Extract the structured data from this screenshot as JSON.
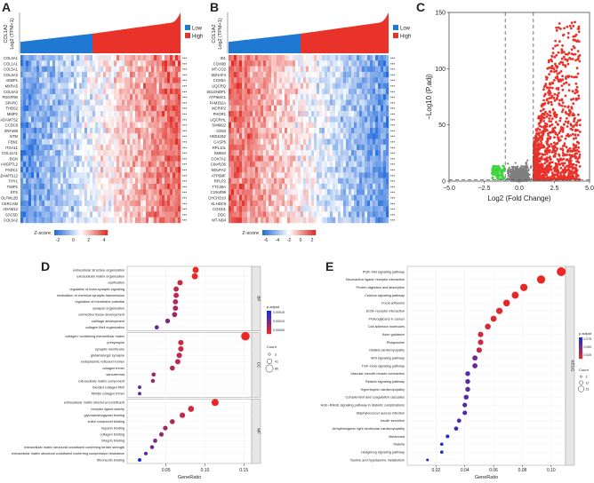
{
  "panels": {
    "a": "A",
    "b": "B",
    "c": "C",
    "d": "D",
    "e": "E"
  },
  "chart_data": [
    {
      "type": "heatmap",
      "panel": "A",
      "ylabel": "COL1A2\nLog2 (TPM+1)",
      "legend": [
        "Low",
        "High"
      ],
      "low_color": "#1f78d1",
      "high_color": "#e8322a",
      "genes": [
        "COL3A1",
        "COL1A1",
        "COL5A1",
        "COL6A2",
        "AEBP1",
        "MXRA5",
        "COL6A3",
        "PDGFRB",
        "SPARC",
        "THBS2",
        "MMP2",
        "ADAMTS2",
        "CCDC8",
        "ZNF469",
        "NTM",
        "FBN1",
        "ITGA11",
        "COL11A1",
        "BGN",
        "ANGPTL2",
        "PXDC1",
        "ADAMTS12",
        "THY1",
        "TIMP2",
        "EFS",
        "OLFML2B",
        "CERCAM",
        "ADAM12",
        "SSC5D",
        "COL6A2"
      ],
      "sig": "***",
      "colorbar": {
        "label": "Z-score",
        "ticks": [
          "-2",
          "0",
          "2",
          "4"
        ]
      }
    },
    {
      "type": "heatmap",
      "panel": "B",
      "ylabel": "COL1A2\nLog2 (TPM+1)",
      "legend": [
        "Low",
        "High"
      ],
      "low_color": "#1f78d1",
      "high_color": "#e8322a",
      "genes": [
        "ID1",
        "COX6B",
        "MT-CO2",
        "SDHAF4",
        "COX5A",
        "UQCRQ",
        "SELENBP1",
        "ATP5MC1",
        "FAM162A",
        "MCRIP2",
        "PHGR1",
        "UQCRHL",
        "SMIM22",
        "CD63",
        "HSD11B2",
        "CASP5",
        "RPL10L",
        "SMIM4",
        "COX7A2",
        "C6orf136",
        "NDUFA2",
        "ATP5MF",
        "RPLP2",
        "TTC39A",
        "C19orf99",
        "CHCHD10",
        "KLHDC9",
        "COX4I1",
        "DDC",
        "MT-ND4"
      ],
      "sig": "***",
      "colorbar": {
        "label": "Z-score",
        "ticks": [
          "-6",
          "-4",
          "-2",
          "0",
          "2"
        ]
      }
    },
    {
      "type": "scatter",
      "panel": "C",
      "title": "",
      "xlabel": "Log2 (Fold Change)",
      "ylabel": "−Log10 (P.adj)",
      "xlim": [
        -5.0,
        5.0
      ],
      "ylim": [
        0,
        150
      ],
      "xticks": [
        "−5.0",
        "−2.5",
        "0.0",
        "2.5",
        "5.0"
      ],
      "yticks": [
        "0",
        "50",
        "100",
        "150"
      ],
      "thresholds": {
        "fc": 1,
        "p": 1.3
      },
      "colors": {
        "down": "#3cd63c",
        "ns": "#7f7f7f",
        "up": "#e8322a"
      }
    },
    {
      "type": "scatter",
      "panel": "D",
      "xlabel": "GeneRatio",
      "xlim": [
        0.0,
        0.16
      ],
      "xticks": [
        "0.05",
        "0.10",
        "0.15"
      ],
      "legend_title": "p.adjust",
      "legend_ticks": [
        "0.00015",
        "0.00010",
        "0.00005"
      ],
      "size_title": "Count",
      "size_ticks": [
        "3",
        "41",
        "80"
      ],
      "groups": [
        {
          "name": "BP",
          "terms": [
            "extracellular structure organization",
            "extracellular matrix organization",
            "ossification",
            "regulation of trans-synaptic signaling",
            "modulation of chemical synaptic transmission",
            "regulation of membrane potential",
            "synapse organization",
            "connective tissue development",
            "cartilage development",
            "collagen fibril organization"
          ],
          "ratios": [
            0.088,
            0.087,
            0.068,
            0.063,
            0.063,
            0.062,
            0.062,
            0.061,
            0.052,
            0.038
          ],
          "padj": [
            1e-05,
            1e-05,
            3e-05,
            4e-05,
            4e-05,
            5e-05,
            5e-05,
            6e-05,
            8e-05,
            0.0001
          ]
        },
        {
          "name": "CC",
          "terms": [
            "collagen−containing extracellular matrix",
            "presynapse",
            "synaptic membrane",
            "glutamatergic synapse",
            "endoplasmic reticulum lumen",
            "collagen trimer",
            "sarcolemma",
            "extracellular matrix component",
            "banded collagen fibril",
            "fibrillar collagen trimer"
          ],
          "ratios": [
            0.152,
            0.069,
            0.069,
            0.067,
            0.065,
            0.058,
            0.034,
            0.033,
            0.016,
            0.016
          ],
          "padj": [
            1e-05,
            3e-05,
            3e-05,
            4e-05,
            4e-05,
            5e-05,
            6e-05,
            6e-05,
            0.0001,
            0.0001
          ]
        },
        {
          "name": "MF",
          "terms": [
            "extracellular matrix structural constituent",
            "receptor ligand activity",
            "glycosaminoglycan binding",
            "sulfur compound binding",
            "heparin binding",
            "collagen binding",
            "integrin binding",
            "extracellular matrix structural constituent conferring tensile strength",
            "extracellular matrix structural constituent conferring compression resistance",
            "fibronectin binding"
          ],
          "ratios": [
            0.113,
            0.082,
            0.071,
            0.058,
            0.049,
            0.044,
            0.036,
            0.032,
            0.024,
            0.016
          ],
          "padj": [
            1e-05,
            3e-05,
            4e-05,
            5e-05,
            6e-05,
            7e-05,
            8e-05,
            9e-05,
            0.0001,
            0.00015
          ]
        }
      ]
    },
    {
      "type": "scatter",
      "panel": "E",
      "xlabel": "GeneRatio",
      "xlim": [
        0.0,
        0.11
      ],
      "xticks": [
        "0.02",
        "0.04",
        "0.06",
        "0.08",
        "0.10"
      ],
      "group": "KEGG",
      "legend_title": "p.adjust",
      "legend_ticks": [
        "0.075",
        "0.050",
        "0.025"
      ],
      "size_title": "Count",
      "size_ticks": [
        "3",
        "12",
        "23"
      ],
      "terms": [
        "PI3K−Akt signaling pathway",
        "Neuroactive ligand−receptor interaction",
        "Protein digestion and absorption",
        "Calcium signaling pathway",
        "Focal adhesion",
        "ECM−receptor interaction",
        "Proteoglycans in cancer",
        "Cell adhesion molecules",
        "Axon guidance",
        "Phagosome",
        "Dilated cardiomyopathy",
        "Wnt signaling pathway",
        "TGF−beta signaling pathway",
        "Vascular smooth muscle contraction",
        "Relaxin signaling pathway",
        "Hypertrophic cardiomyopathy",
        "Complement and coagulation cascades",
        "AGE−RAGE signaling pathway in diabetic complications",
        "Staphylococcus aureus infection",
        "Insulin secretion",
        "Arrhythmogenic right ventricular cardiomyopathy",
        "Melanoma",
        "Malaria",
        "Hedgehog signaling pathway",
        "Taurine and hypotaurine metabolism"
      ],
      "ratios": [
        0.107,
        0.093,
        0.081,
        0.075,
        0.069,
        0.064,
        0.06,
        0.056,
        0.051,
        0.051,
        0.05,
        0.047,
        0.047,
        0.042,
        0.042,
        0.042,
        0.041,
        0.04,
        0.04,
        0.036,
        0.034,
        0.028,
        0.024,
        0.024,
        0.014
      ],
      "padj": [
        0.001,
        0.002,
        0.002,
        0.003,
        0.004,
        0.005,
        0.008,
        0.01,
        0.012,
        0.013,
        0.014,
        0.045,
        0.05,
        0.055,
        0.055,
        0.055,
        0.057,
        0.058,
        0.059,
        0.06,
        0.062,
        0.075,
        0.078,
        0.078,
        0.08
      ],
      "counts": [
        23,
        21,
        18,
        17,
        16,
        15,
        14,
        13,
        12,
        12,
        12,
        11,
        11,
        10,
        10,
        10,
        10,
        9,
        9,
        8,
        8,
        6,
        5,
        5,
        3
      ]
    }
  ]
}
